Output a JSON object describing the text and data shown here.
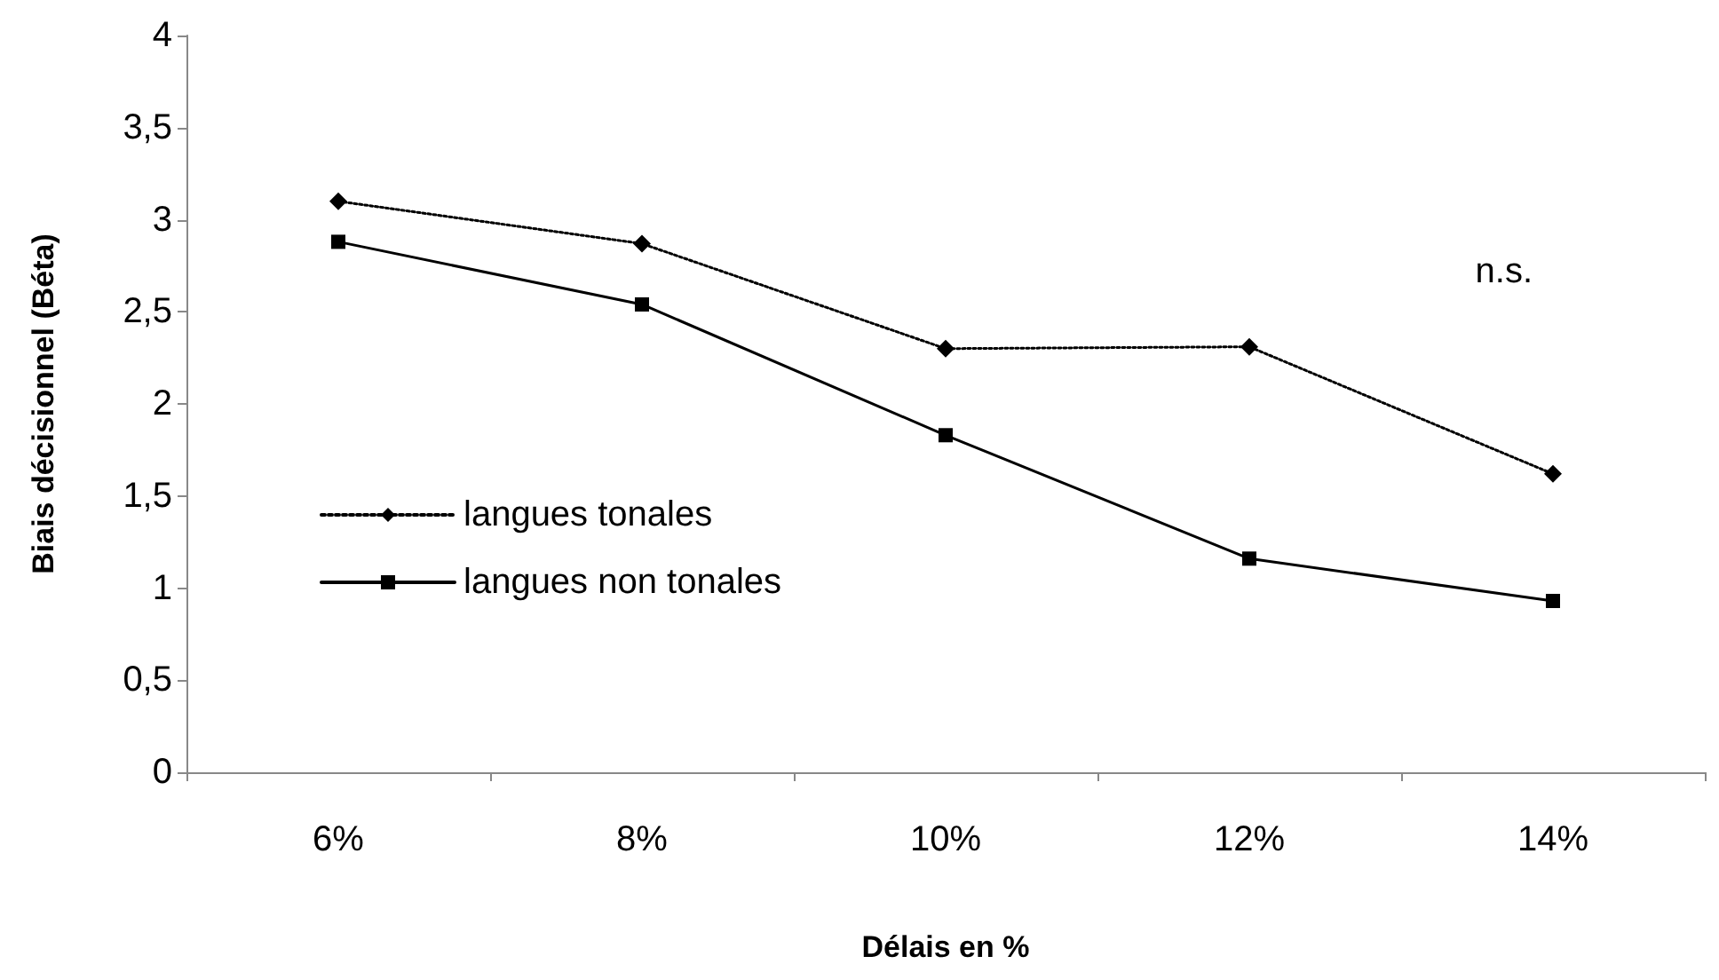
{
  "chart_data": {
    "type": "line",
    "xlabel": "Délais en %",
    "ylabel": "Biais décisionnel (Béta)",
    "categories": [
      "6%",
      "8%",
      "10%",
      "12%",
      "14%"
    ],
    "series": [
      {
        "name": "langues tonales",
        "color": "#000000",
        "marker": "diamond",
        "line_style": "dotted",
        "values": [
          3.1,
          2.87,
          2.3,
          2.31,
          1.62
        ]
      },
      {
        "name": "langues non tonales",
        "color": "#000000",
        "marker": "square",
        "line_style": "solid",
        "values": [
          2.88,
          2.54,
          1.83,
          1.16,
          0.93
        ]
      }
    ],
    "ylim": [
      0,
      4
    ],
    "yticks": [
      0,
      {
        "value": 0.5,
        "label": "0,5"
      },
      1,
      {
        "value": 1.5,
        "label": "1,5"
      },
      2,
      {
        "value": 2.5,
        "label": "2,5"
      },
      3,
      {
        "value": 3.5,
        "label": "3,5"
      },
      4
    ],
    "annotations": [
      "n.s."
    ],
    "legend": "left",
    "grid": false
  }
}
